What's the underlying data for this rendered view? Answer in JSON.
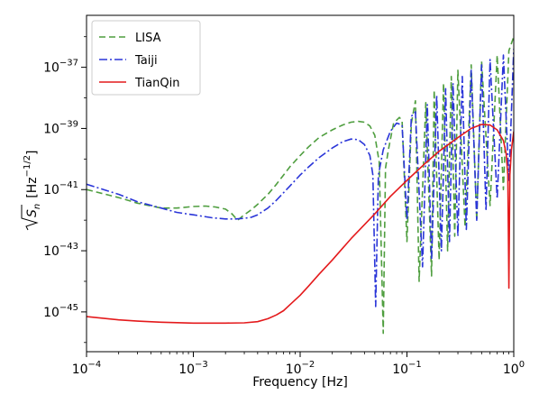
{
  "chart_data": {
    "type": "line",
    "title": "",
    "xlabel": "Frequency [Hz]",
    "ylabel": "√S_n [Hz^-1/2]",
    "ylabel_parts": {
      "base": "S",
      "sub": "n",
      "unit_open": "[Hz",
      "unit_exp": "−1/2",
      "unit_close": "]"
    },
    "x_scale": "log",
    "y_scale": "log",
    "xlim": [
      0.0001,
      1
    ],
    "ylim": [
      5e-47,
      5e-36
    ],
    "legend_position": "upper-left",
    "grid": false,
    "x_ticks": [
      {
        "value": 0.0001,
        "base": "10",
        "exp": "−4"
      },
      {
        "value": 0.001,
        "base": "10",
        "exp": "−3"
      },
      {
        "value": 0.01,
        "base": "10",
        "exp": "−2"
      },
      {
        "value": 0.1,
        "base": "10",
        "exp": "−1"
      },
      {
        "value": 1,
        "base": "10",
        "exp": "0"
      }
    ],
    "y_ticks": [
      {
        "value": 1e-45,
        "base": "10",
        "exp": "−45"
      },
      {
        "value": 1e-43,
        "base": "10",
        "exp": "−43"
      },
      {
        "value": 1e-41,
        "base": "10",
        "exp": "−41"
      },
      {
        "value": 1e-39,
        "base": "10",
        "exp": "−39"
      },
      {
        "value": 1e-37,
        "base": "10",
        "exp": "−37"
      }
    ],
    "series": [
      {
        "name": "LISA",
        "color": "#4f9e3f",
        "dash": "dashed",
        "x": [
          0.0001,
          0.0002,
          0.0003,
          0.0005,
          0.0007,
          0.001,
          0.0013,
          0.0016,
          0.002,
          0.0023,
          0.0026,
          0.003,
          0.0035,
          0.004,
          0.005,
          0.006,
          0.007,
          0.008,
          0.01,
          0.012,
          0.015,
          0.02,
          0.025,
          0.03,
          0.035,
          0.04,
          0.045,
          0.05,
          0.055,
          0.06,
          0.063,
          0.067,
          0.075,
          0.085,
          0.09,
          0.1,
          0.11,
          0.12,
          0.13,
          0.15,
          0.17,
          0.18,
          0.2,
          0.22,
          0.24,
          0.26,
          0.28,
          0.3,
          0.35,
          0.4,
          0.45,
          0.5,
          0.6,
          0.7,
          0.8,
          0.9,
          1.0
        ],
        "y": [
          1e-41,
          5.5e-42,
          3.6e-42,
          2.5e-42,
          2.5e-42,
          2.8e-42,
          2.9e-42,
          2.7e-42,
          2.3e-42,
          1.6e-42,
          1e-42,
          1.5e-42,
          2.2e-42,
          3.3e-42,
          7e-42,
          1.5e-41,
          3e-41,
          5.5e-41,
          1.3e-40,
          2.5e-40,
          5e-40,
          9e-40,
          1.3e-39,
          1.6e-39,
          1.7e-39,
          1.6e-39,
          1.2e-39,
          6e-40,
          8e-41,
          2e-46,
          5e-41,
          2e-40,
          1.5e-39,
          2.3e-39,
          1.8e-39,
          2e-43,
          1.5e-39,
          8e-39,
          1e-44,
          7e-39,
          1.5e-44,
          1.8e-38,
          5e-44,
          3e-38,
          1e-43,
          5e-38,
          3e-43,
          8e-38,
          6e-43,
          1.2e-37,
          1e-42,
          1.6e-37,
          3e-42,
          2.5e-37,
          1e-41,
          3.5e-37,
          1e-36
        ]
      },
      {
        "name": "Taiji",
        "color": "#2a35d8",
        "dash": "dashdot",
        "x": [
          0.0001,
          0.0002,
          0.0003,
          0.0005,
          0.0007,
          0.001,
          0.0015,
          0.002,
          0.0025,
          0.003,
          0.0035,
          0.004,
          0.005,
          0.006,
          0.008,
          0.01,
          0.012,
          0.015,
          0.02,
          0.025,
          0.03,
          0.035,
          0.04,
          0.045,
          0.048,
          0.051,
          0.054,
          0.06,
          0.07,
          0.08,
          0.09,
          0.1,
          0.11,
          0.12,
          0.14,
          0.155,
          0.17,
          0.19,
          0.21,
          0.23,
          0.25,
          0.27,
          0.3,
          0.33,
          0.36,
          0.4,
          0.45,
          0.5,
          0.55,
          0.6,
          0.7,
          0.8,
          0.9,
          1.0
        ],
        "y": [
          1.5e-41,
          7e-42,
          4e-42,
          2.5e-42,
          1.8e-42,
          1.5e-42,
          1.2e-42,
          1.1e-42,
          1.1e-42,
          1.15e-42,
          1.25e-42,
          1.5e-42,
          2.5e-42,
          4.5e-42,
          1.3e-41,
          3e-41,
          5.5e-41,
          1.1e-40,
          2.3e-40,
          3.7e-40,
          4.5e-40,
          4.3e-40,
          3e-40,
          1.3e-40,
          3e-41,
          1.5e-45,
          3e-41,
          2e-40,
          8e-40,
          1.5e-39,
          1.3e-39,
          1e-42,
          2.5e-39,
          3.5e-39,
          3e-44,
          6e-39,
          5e-44,
          1.2e-38,
          1e-43,
          2e-38,
          2e-43,
          3e-38,
          3e-43,
          5e-38,
          5e-43,
          8e-38,
          1e-42,
          1.2e-37,
          2e-42,
          1.8e-37,
          5e-42,
          2.5e-37,
          2e-41,
          4e-37
        ]
      },
      {
        "name": "TianQin",
        "color": "#e41a1c",
        "dash": "solid",
        "x": [
          0.0001,
          0.0002,
          0.0003,
          0.0005,
          0.001,
          0.002,
          0.003,
          0.004,
          0.005,
          0.006,
          0.007,
          0.008,
          0.01,
          0.012,
          0.015,
          0.02,
          0.03,
          0.05,
          0.07,
          0.1,
          0.15,
          0.2,
          0.3,
          0.4,
          0.5,
          0.6,
          0.7,
          0.8,
          0.85,
          0.88,
          0.9,
          0.92,
          0.95,
          1.0
        ],
        "y": [
          7e-46,
          5.5e-46,
          5e-46,
          4.6e-46,
          4.3e-46,
          4.3e-46,
          4.4e-46,
          4.8e-46,
          6e-46,
          8e-46,
          1.1e-45,
          1.7e-45,
          3.5e-45,
          7e-45,
          1.7e-44,
          5e-44,
          2.5e-43,
          1.6e-42,
          6e-42,
          2e-41,
          7.5e-41,
          1.8e-40,
          5e-40,
          1e-39,
          1.35e-39,
          1.3e-39,
          9e-40,
          4e-40,
          1.5e-40,
          3e-41,
          6e-45,
          3e-41,
          2e-40,
          8e-40
        ]
      }
    ]
  }
}
